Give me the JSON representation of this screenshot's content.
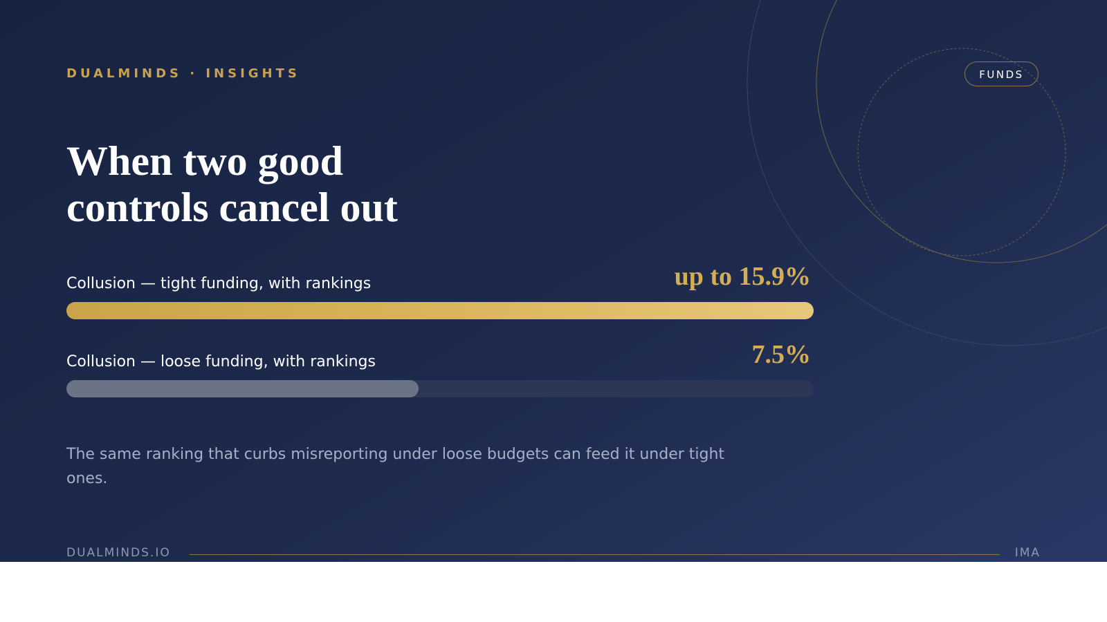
{
  "header": {
    "brand": "DUALMINDS · INSIGHTS",
    "badge": "FUNDS"
  },
  "chart_data": {
    "type": "hbar",
    "title": "When two good controls cancel out",
    "categories": [
      "Collusion — tight funding, with rankings",
      "Collusion — loose funding, with rankings"
    ],
    "values": [
      15.9,
      7.5
    ],
    "value_labels": [
      "up to 15.9%",
      "7.5%"
    ],
    "colors": [
      "#d9b45a",
      "#6b7387"
    ],
    "xlim": [
      0,
      15.9
    ]
  },
  "caption": "The same ranking that curbs misreporting under loose budgets can feed it under tight ones.",
  "footer": {
    "site": "DUALMINDS.IO",
    "tag": "IMA"
  }
}
